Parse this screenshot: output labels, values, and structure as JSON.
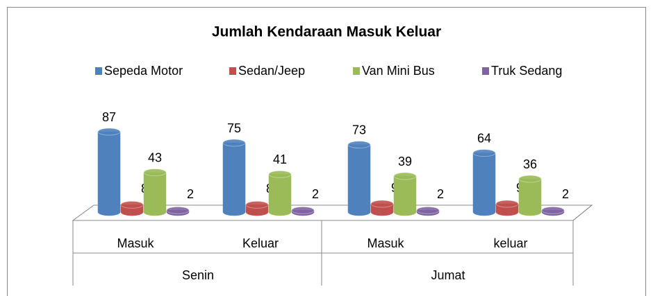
{
  "chart_data": {
    "type": "bar3d",
    "title": "Jumlah Kendaraan Masuk Keluar",
    "categories": [
      "Masuk",
      "Keluar",
      "Masuk",
      "keluar"
    ],
    "groups": [
      "Senin",
      "Jumat"
    ],
    "series": [
      {
        "name": "Sepeda Motor",
        "color": "#4f81bd",
        "values": [
          87,
          75,
          73,
          64
        ]
      },
      {
        "name": "Sedan/Jeep",
        "color": "#c0504d",
        "values": [
          8,
          8,
          9,
          9
        ]
      },
      {
        "name": "Van Mini Bus",
        "color": "#9bbb59",
        "values": [
          43,
          41,
          39,
          36
        ]
      },
      {
        "name": "Truk Sedang",
        "color": "#8064a2",
        "values": [
          2,
          2,
          2,
          2
        ]
      }
    ],
    "legend": "top"
  }
}
